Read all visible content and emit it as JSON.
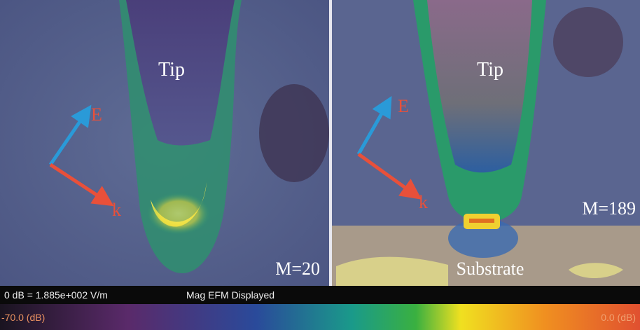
{
  "panels": [
    {
      "tip_label": "Tip",
      "e_label": "E",
      "k_label": "k",
      "magnification": "M=20"
    },
    {
      "tip_label": "Tip",
      "e_label": "E",
      "k_label": "k",
      "magnification": "M=189",
      "substrate_label": "Substrate"
    }
  ],
  "status_bar": {
    "reference": "0 dB = 1.885e+002 V/m",
    "mode": "Mag EFM Displayed"
  },
  "color_scale": {
    "min_label": "-70.0 (dB)",
    "max_label": "0.0 (dB)"
  }
}
